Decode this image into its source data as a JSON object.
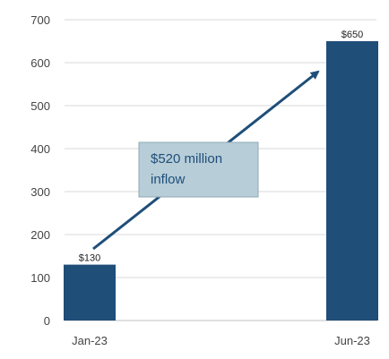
{
  "chart_data": {
    "type": "bar",
    "categories": [
      "Jan-23",
      "Jun-23"
    ],
    "values": [
      130,
      650
    ],
    "data_labels": [
      "$130",
      "$650"
    ],
    "ylim": [
      0,
      700
    ],
    "yticks": [
      0,
      100,
      200,
      300,
      400,
      500,
      600,
      700
    ],
    "title": "",
    "xlabel": "",
    "ylabel": "",
    "grid": true,
    "annotation": {
      "line1": "$520 million",
      "line2": "inflow"
    },
    "colors": {
      "bar": "#1f4e79",
      "grid": "#d9d9d9",
      "arrow": "#1f4e79",
      "annotation_fill": "#b7cdd8",
      "annotation_border": "#8fa9b6"
    }
  }
}
